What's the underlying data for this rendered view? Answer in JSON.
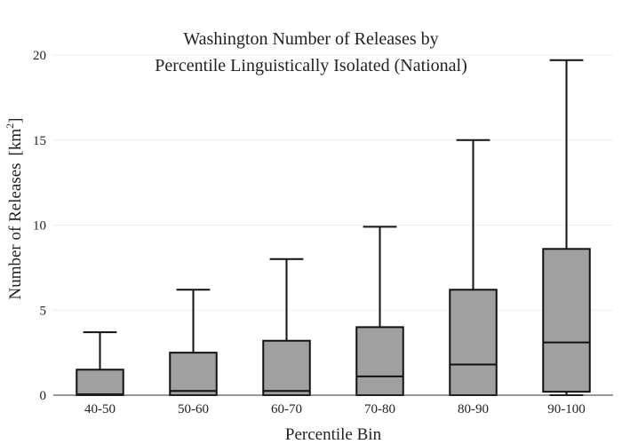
{
  "chart_data": {
    "type": "box",
    "title_lines": [
      "Washington Number of Releases by",
      "Percentile Linguistically Isolated (National)"
    ],
    "xlabel": "Percentile Bin",
    "ylabel_main": "Number of Releases",
    "ylabel_unit_prefix": "[km",
    "ylabel_unit_sup": "2",
    "ylabel_unit_suffix": "]",
    "ylim": [
      0,
      20
    ],
    "yticks": [
      0,
      5,
      10,
      15,
      20
    ],
    "grid": true,
    "categories": [
      "40-50",
      "50-60",
      "60-70",
      "70-80",
      "80-90",
      "90-100"
    ],
    "boxes": [
      {
        "category": "40-50",
        "min": 0,
        "q1": 0,
        "median": 0.05,
        "q3": 1.5,
        "max": 3.7
      },
      {
        "category": "50-60",
        "min": 0,
        "q1": 0,
        "median": 0.25,
        "q3": 2.5,
        "max": 6.2
      },
      {
        "category": "60-70",
        "min": 0,
        "q1": 0,
        "median": 0.25,
        "q3": 3.2,
        "max": 8.0
      },
      {
        "category": "70-80",
        "min": 0,
        "q1": 0,
        "median": 1.1,
        "q3": 4.0,
        "max": 9.9
      },
      {
        "category": "80-90",
        "min": 0,
        "q1": 0,
        "median": 1.8,
        "q3": 6.2,
        "max": 15.0
      },
      {
        "category": "90-100",
        "min": 0,
        "q1": 0.2,
        "median": 3.1,
        "q3": 8.6,
        "max": 19.7
      }
    ]
  }
}
